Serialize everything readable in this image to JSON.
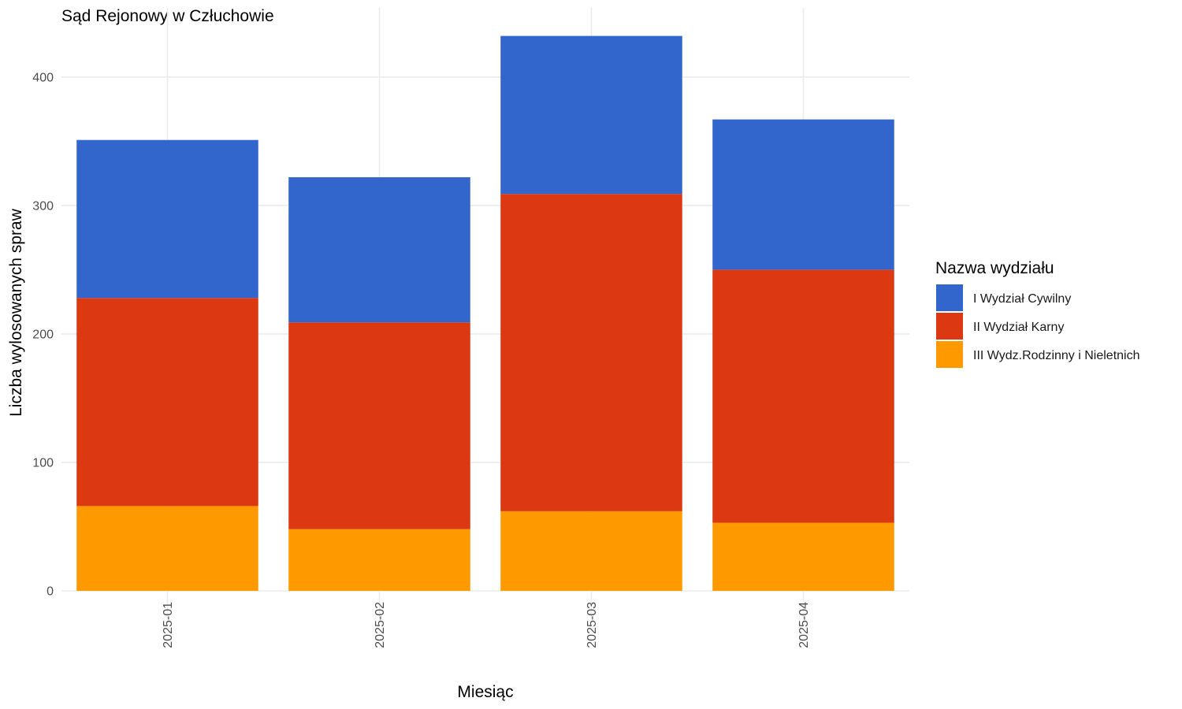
{
  "chart_data": {
    "type": "bar",
    "stacked": true,
    "title": "Sąd Rejonowy w Człuchowie",
    "xlabel": "Miesiąc",
    "ylabel": "Liczba wylosowanych spraw",
    "categories": [
      "2025-01",
      "2025-02",
      "2025-03",
      "2025-04"
    ],
    "ylim": [
      0,
      440
    ],
    "yticks": [
      0,
      100,
      200,
      300,
      400
    ],
    "grid": true,
    "legend_position": "right",
    "legend_title": "Nazwa wydziału",
    "series": [
      {
        "name": "III Wydz.Rodzinny i Nieletnich",
        "color": "#FF9900",
        "values": [
          66,
          48,
          62,
          53
        ]
      },
      {
        "name": "II Wydział Karny",
        "color": "#DC3912",
        "values": [
          162,
          161,
          247,
          197
        ]
      },
      {
        "name": "I Wydział Cywilny",
        "color": "#3366CC",
        "values": [
          123,
          113,
          123,
          117
        ]
      }
    ],
    "legend_order": [
      "I Wydział Cywilny",
      "II Wydział Karny",
      "III Wydz.Rodzinny i Nieletnich"
    ]
  }
}
